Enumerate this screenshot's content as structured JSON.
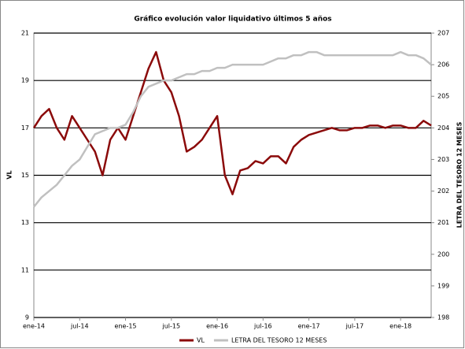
{
  "chart_data": {
    "type": "line",
    "title": "Gráfico evolución valor liquidativo últimos 5 años",
    "y_label": "VL",
    "y2_label": "LETRA DEL TESORO 12 MESES",
    "categories": [
      "ene-14",
      null,
      null,
      null,
      null,
      null,
      "jul-14",
      null,
      null,
      null,
      null,
      null,
      "ene-15",
      null,
      null,
      null,
      null,
      null,
      "jul-15",
      null,
      null,
      null,
      null,
      null,
      "ene-16",
      null,
      null,
      null,
      null,
      null,
      "jul-16",
      null,
      null,
      null,
      null,
      null,
      "ene-17",
      null,
      null,
      null,
      null,
      null,
      "jul-17",
      null,
      null,
      null,
      null,
      null,
      "ene-18",
      null,
      null,
      null,
      null
    ],
    "series": [
      {
        "name": "VL",
        "color": "#8b0a0a",
        "axis": "y",
        "values": [
          17,
          17.5,
          17.8,
          17,
          16.5,
          17.5,
          17,
          16.5,
          16,
          15,
          16.5,
          17,
          16.5,
          17.5,
          18.5,
          19.5,
          20.2,
          19,
          18.5,
          17.5,
          16,
          16.2,
          16.5,
          17,
          17.5,
          15,
          14.2,
          15.2,
          15.3,
          15.6,
          15.5,
          15.8,
          15.8,
          15.5,
          16.2,
          16.5,
          16.7,
          16.8,
          16.9,
          17,
          16.9,
          16.9,
          17,
          17,
          17.1,
          17.1,
          17,
          17.1,
          17.1,
          17,
          17,
          17.3,
          17.1
        ]
      },
      {
        "name": "LETRA DEL TESORO 12 MESES",
        "color": "#c0c0c0",
        "axis": "y2",
        "values": [
          201.5,
          201.8,
          202,
          202.2,
          202.5,
          202.8,
          203,
          203.4,
          203.8,
          203.9,
          204,
          204,
          204.1,
          204.5,
          205,
          205.3,
          205.4,
          205.5,
          205.5,
          205.6,
          205.7,
          205.7,
          205.8,
          205.8,
          205.9,
          205.9,
          206,
          206,
          206,
          206,
          206,
          206.1,
          206.2,
          206.2,
          206.3,
          206.3,
          206.4,
          206.4,
          206.3,
          206.3,
          206.3,
          206.3,
          206.3,
          206.3,
          206.3,
          206.3,
          206.3,
          206.3,
          206.4,
          206.3,
          206.3,
          206.2,
          206
        ]
      }
    ],
    "ylim": [
      9,
      21
    ],
    "yticks": [
      9,
      11,
      13,
      15,
      17,
      19,
      21
    ],
    "y2lim": [
      198,
      207
    ],
    "y2ticks": [
      198,
      199,
      200,
      201,
      202,
      203,
      204,
      205,
      206,
      207
    ],
    "grid": true,
    "legend": "bottom"
  }
}
